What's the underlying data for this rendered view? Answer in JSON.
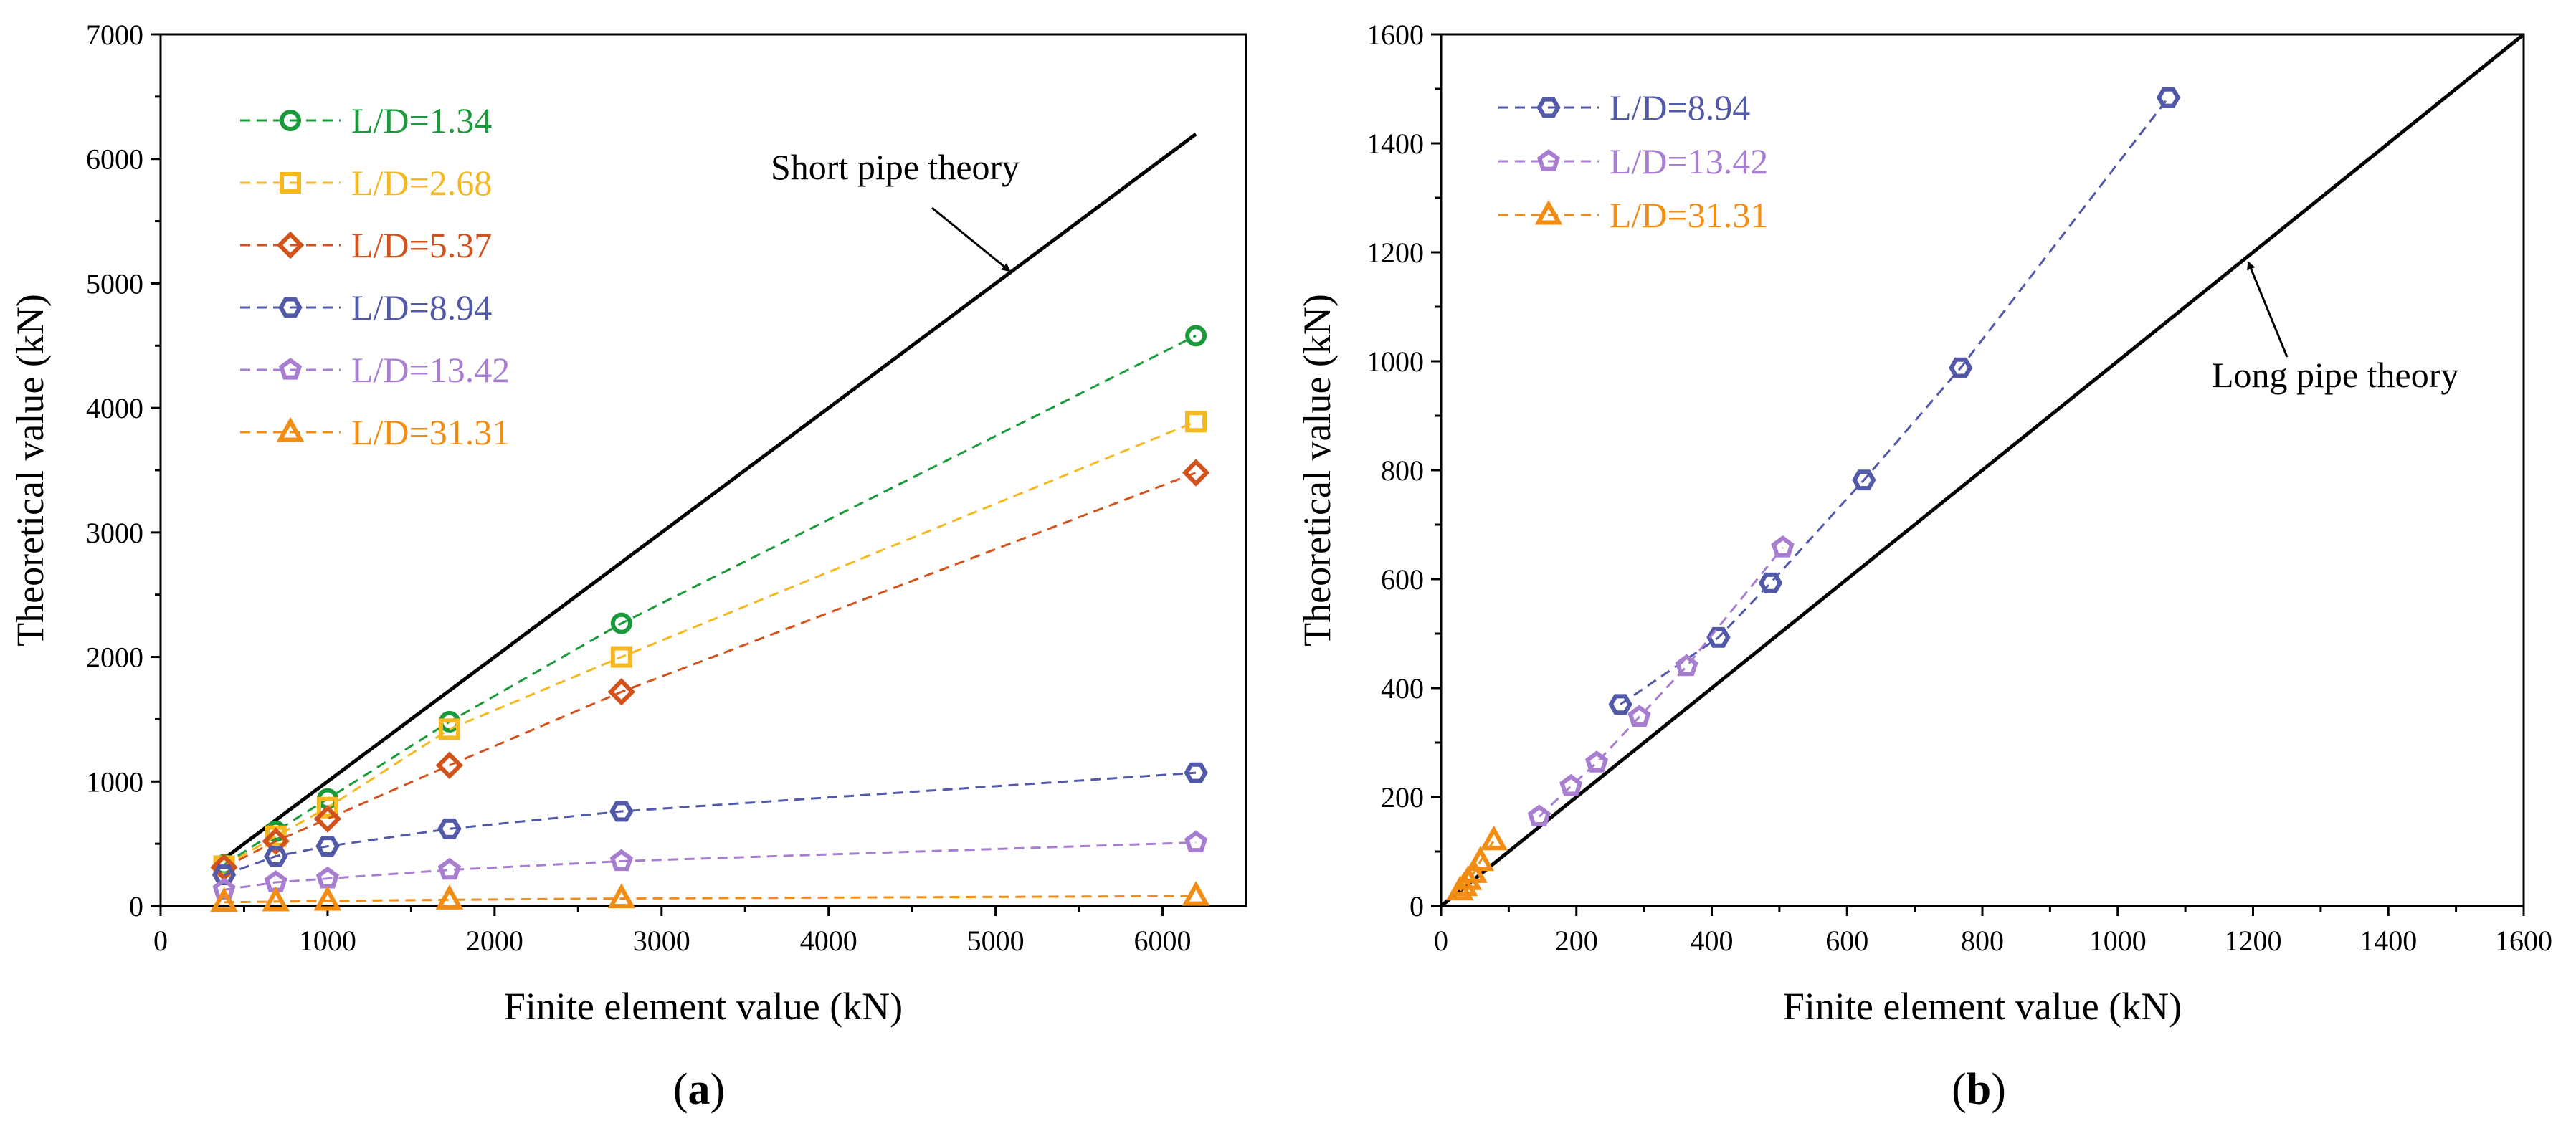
{
  "chart_data": [
    {
      "type": "scatter",
      "panel_label": "a",
      "xlabel": "Finite element value (kN)",
      "ylabel": "Theoretical value (kN)",
      "xlim": [
        0,
        6500
      ],
      "ylim": [
        0,
        7000
      ],
      "xticks": [
        "0",
        "1000",
        "2000",
        "3000",
        "4000",
        "5000",
        "6000"
      ],
      "yticks": [
        "0",
        "1000",
        "2000",
        "3000",
        "4000",
        "5000",
        "6000",
        "7000"
      ],
      "legend_position": "top-left",
      "reference_line": {
        "label": "Short pipe theory",
        "x": [
          380,
          6200
        ],
        "y": [
          380,
          6200
        ]
      },
      "series": [
        {
          "name": "L/D=1.34",
          "marker": "circle",
          "color": "#1a9a3a",
          "x": [
            380,
            690,
            1000,
            1730,
            2760,
            6200
          ],
          "y": [
            330,
            600,
            860,
            1480,
            2270,
            4580
          ]
        },
        {
          "name": "L/D=2.68",
          "marker": "square",
          "color": "#f5b820",
          "x": [
            380,
            690,
            1000,
            1730,
            2760,
            6200
          ],
          "y": [
            320,
            560,
            790,
            1420,
            2000,
            3890
          ]
        },
        {
          "name": "L/D=5.37",
          "marker": "diamond",
          "color": "#d2521c",
          "x": [
            380,
            690,
            1000,
            1730,
            2760,
            6200
          ],
          "y": [
            310,
            520,
            700,
            1130,
            1720,
            3480
          ]
        },
        {
          "name": "L/D=8.94",
          "marker": "hexagon",
          "color": "#5159a8",
          "x": [
            380,
            690,
            1000,
            1730,
            2760,
            6200
          ],
          "y": [
            250,
            400,
            480,
            620,
            760,
            1070
          ]
        },
        {
          "name": "L/D=13.42",
          "marker": "pentagon",
          "color": "#a77ed0",
          "x": [
            380,
            690,
            1000,
            1730,
            2760,
            6200
          ],
          "y": [
            130,
            190,
            220,
            290,
            360,
            510
          ]
        },
        {
          "name": "L/D=31.31",
          "marker": "triangle",
          "color": "#f28c12",
          "x": [
            380,
            690,
            1000,
            1730,
            2760,
            6200
          ],
          "y": [
            30,
            35,
            40,
            50,
            60,
            80
          ]
        }
      ]
    },
    {
      "type": "scatter",
      "panel_label": "b",
      "xlabel": "Finite element value (kN)",
      "ylabel": "Theoretical value (kN)",
      "xlim": [
        0,
        1600
      ],
      "ylim": [
        0,
        1600
      ],
      "xticks": [
        "0",
        "200",
        "400",
        "600",
        "800",
        "1000",
        "1200",
        "1400",
        "1600"
      ],
      "yticks": [
        "0",
        "200",
        "400",
        "600",
        "800",
        "1000",
        "1200",
        "1400",
        "1600"
      ],
      "legend_position": "top-left",
      "reference_line": {
        "label": "Long pipe theory",
        "x": [
          0,
          1600
        ],
        "y": [
          0,
          1600
        ]
      },
      "series": [
        {
          "name": "L/D=8.94",
          "marker": "hexagon",
          "color": "#5159a8",
          "x": [
            265,
            410,
            487,
            625,
            768,
            1075
          ],
          "y": [
            370,
            493,
            593,
            782,
            988,
            1484
          ]
        },
        {
          "name": "L/D=13.42",
          "marker": "pentagon",
          "color": "#a77ed0",
          "x": [
            145,
            192,
            230,
            293,
            363,
            505
          ],
          "y": [
            164,
            220,
            263,
            347,
            440,
            658
          ]
        },
        {
          "name": "L/D=31.31",
          "marker": "triangle",
          "color": "#f28c12",
          "x": [
            28,
            34,
            40,
            48,
            58,
            78
          ],
          "y": [
            28,
            36,
            47,
            60,
            82,
            120
          ]
        }
      ]
    }
  ]
}
